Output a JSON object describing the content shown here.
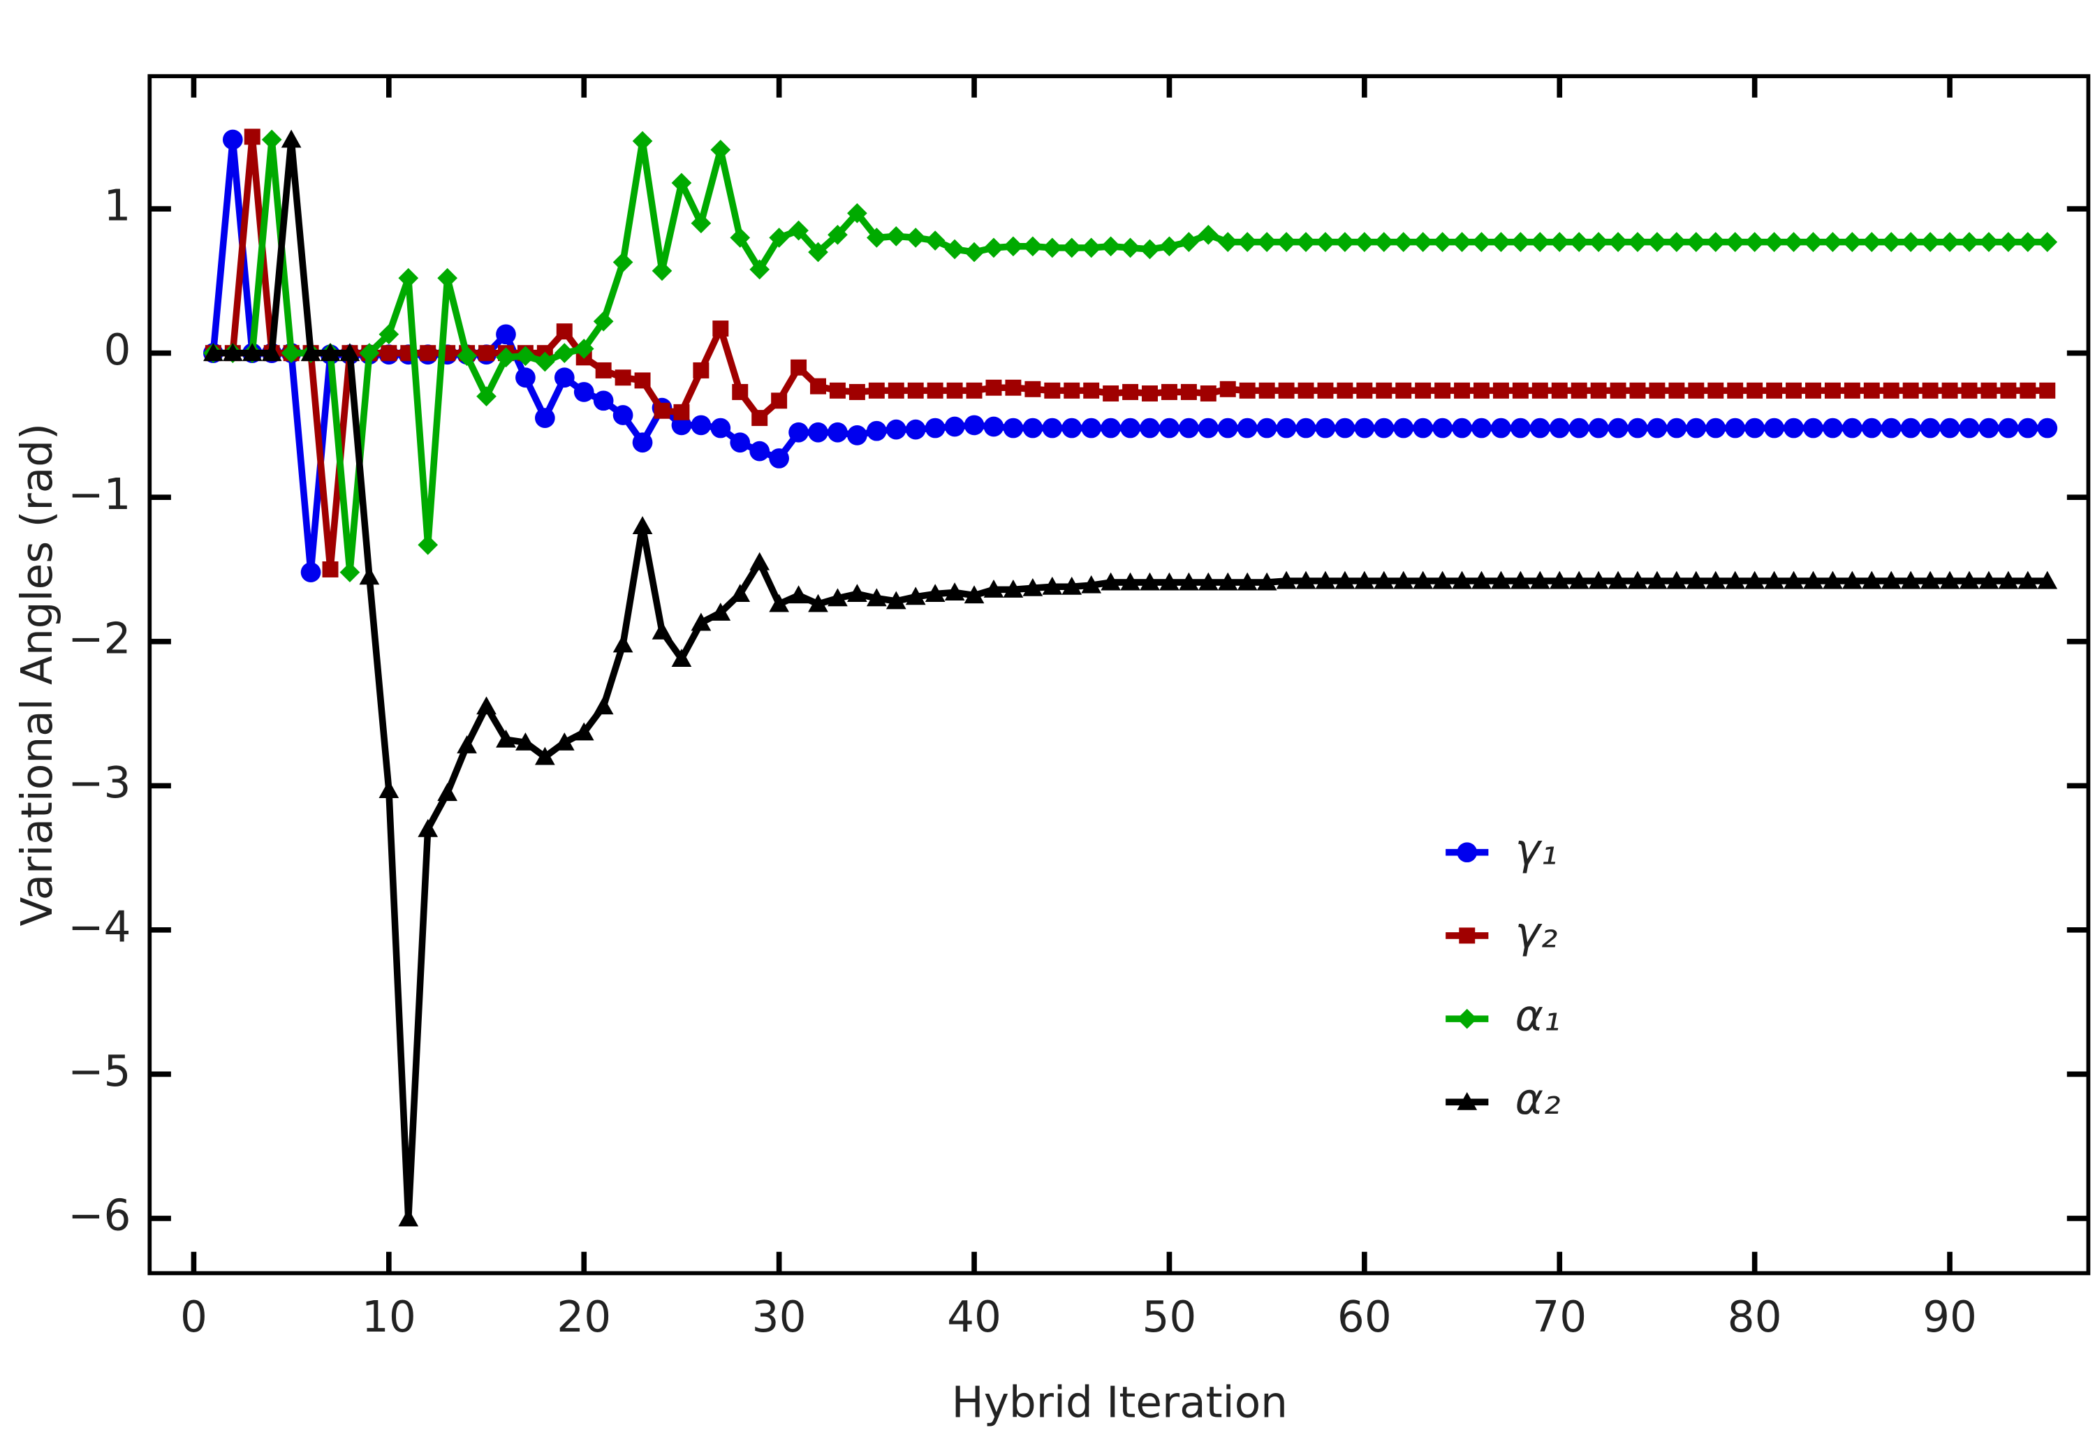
{
  "chart_data": {
    "type": "line",
    "xlabel": "Hybrid Iteration",
    "ylabel": "Variational Angles (rad)",
    "x": [
      1,
      2,
      3,
      4,
      5,
      6,
      7,
      8,
      9,
      10,
      11,
      12,
      13,
      14,
      15,
      16,
      17,
      18,
      19,
      20,
      21,
      22,
      23,
      24,
      25,
      26,
      27,
      28,
      29,
      30,
      31,
      32,
      33,
      34,
      35,
      36,
      37,
      38,
      39,
      40,
      41,
      42,
      43,
      44,
      45,
      46,
      47,
      48,
      49,
      50,
      51,
      52,
      53,
      54,
      55,
      56,
      57,
      58,
      59,
      60,
      61,
      62,
      63,
      64,
      65,
      66,
      67,
      68,
      69,
      70,
      71,
      72,
      73,
      74,
      75,
      76,
      77,
      78,
      79,
      80,
      81,
      82,
      83,
      84,
      85,
      86,
      87,
      88,
      89,
      90,
      91,
      92,
      93,
      94,
      95
    ],
    "series": [
      {
        "name": "γ₁",
        "color": "#0000ee",
        "marker": "circle",
        "values": [
          0,
          1.48,
          0,
          0,
          0,
          -1.52,
          -0.01,
          -0.01,
          -0.01,
          -0.01,
          -0.01,
          -0.01,
          -0.01,
          -0.01,
          -0.01,
          0.13,
          -0.17,
          -0.45,
          -0.17,
          -0.27,
          -0.33,
          -0.43,
          -0.62,
          -0.38,
          -0.5,
          -0.5,
          -0.52,
          -0.62,
          -0.68,
          -0.73,
          -0.55,
          -0.55,
          -0.55,
          -0.57,
          -0.54,
          -0.53,
          -0.53,
          -0.52,
          -0.51,
          -0.5,
          -0.51,
          -0.52,
          -0.52,
          -0.52,
          -0.52,
          -0.52,
          -0.52,
          -0.52,
          -0.52,
          -0.52,
          -0.52,
          -0.52,
          -0.52,
          -0.52,
          -0.52,
          -0.52,
          -0.52,
          -0.52,
          -0.52,
          -0.52,
          -0.52,
          -0.52,
          -0.52,
          -0.52,
          -0.52,
          -0.52,
          -0.52,
          -0.52,
          -0.52,
          -0.52,
          -0.52,
          -0.52,
          -0.52,
          -0.52,
          -0.52,
          -0.52,
          -0.52,
          -0.52,
          -0.52,
          -0.52,
          -0.52,
          -0.52,
          -0.52,
          -0.52,
          -0.52,
          -0.52,
          -0.52,
          -0.52,
          -0.52,
          -0.52,
          -0.52,
          -0.52,
          -0.52,
          -0.52,
          -0.52
        ]
      },
      {
        "name": "γ₂",
        "color": "#a00000",
        "marker": "square",
        "values": [
          0,
          0,
          1.5,
          0,
          0,
          0,
          -1.5,
          0,
          0,
          0,
          0,
          0,
          0,
          0,
          0,
          0,
          0,
          0,
          0.15,
          -0.03,
          -0.12,
          -0.17,
          -0.19,
          -0.4,
          -0.41,
          -0.12,
          0.17,
          -0.27,
          -0.45,
          -0.33,
          -0.1,
          -0.23,
          -0.26,
          -0.27,
          -0.26,
          -0.26,
          -0.26,
          -0.26,
          -0.26,
          -0.26,
          -0.24,
          -0.24,
          -0.25,
          -0.26,
          -0.26,
          -0.26,
          -0.28,
          -0.27,
          -0.28,
          -0.27,
          -0.27,
          -0.28,
          -0.25,
          -0.26,
          -0.26,
          -0.26,
          -0.26,
          -0.26,
          -0.26,
          -0.26,
          -0.26,
          -0.26,
          -0.26,
          -0.26,
          -0.26,
          -0.26,
          -0.26,
          -0.26,
          -0.26,
          -0.26,
          -0.26,
          -0.26,
          -0.26,
          -0.26,
          -0.26,
          -0.26,
          -0.26,
          -0.26,
          -0.26,
          -0.26,
          -0.26,
          -0.26,
          -0.26,
          -0.26,
          -0.26,
          -0.26,
          -0.26,
          -0.26,
          -0.26,
          -0.26,
          -0.26,
          -0.26,
          -0.26,
          -0.26,
          -0.26
        ]
      },
      {
        "name": "α₁",
        "color": "#00aa00",
        "marker": "diamond",
        "values": [
          0,
          0,
          0,
          1.48,
          0,
          0,
          0,
          -1.52,
          0,
          0.13,
          0.52,
          -1.33,
          0.52,
          -0.02,
          -0.3,
          -0.03,
          -0.02,
          -0.06,
          0,
          0.03,
          0.22,
          0.63,
          1.47,
          0.57,
          1.18,
          0.9,
          1.41,
          0.8,
          0.58,
          0.8,
          0.85,
          0.7,
          0.82,
          0.97,
          0.8,
          0.81,
          0.8,
          0.78,
          0.72,
          0.7,
          0.73,
          0.74,
          0.74,
          0.73,
          0.73,
          0.73,
          0.74,
          0.73,
          0.72,
          0.74,
          0.77,
          0.82,
          0.77,
          0.77,
          0.77,
          0.77,
          0.77,
          0.77,
          0.77,
          0.77,
          0.77,
          0.77,
          0.77,
          0.77,
          0.77,
          0.77,
          0.77,
          0.77,
          0.77,
          0.77,
          0.77,
          0.77,
          0.77,
          0.77,
          0.77,
          0.77,
          0.77,
          0.77,
          0.77,
          0.77,
          0.77,
          0.77,
          0.77,
          0.77,
          0.77,
          0.77,
          0.77,
          0.77,
          0.77,
          0.77,
          0.77,
          0.77,
          0.77,
          0.77,
          0.77
        ]
      },
      {
        "name": "α₂",
        "color": "#000000",
        "marker": "triangle",
        "values": [
          0,
          0,
          0,
          0,
          1.48,
          0,
          0,
          0,
          -1.55,
          -3.03,
          -6,
          -3.3,
          -3.05,
          -2.72,
          -2.45,
          -2.68,
          -2.7,
          -2.8,
          -2.7,
          -2.63,
          -2.45,
          -2.02,
          -1.2,
          -1.93,
          -2.12,
          -1.87,
          -1.8,
          -1.67,
          -1.45,
          -1.74,
          -1.68,
          -1.74,
          -1.7,
          -1.67,
          -1.7,
          -1.72,
          -1.69,
          -1.67,
          -1.66,
          -1.68,
          -1.64,
          -1.64,
          -1.63,
          -1.62,
          -1.62,
          -1.61,
          -1.59,
          -1.59,
          -1.59,
          -1.59,
          -1.59,
          -1.59,
          -1.59,
          -1.59,
          -1.59,
          -1.58,
          -1.58,
          -1.58,
          -1.58,
          -1.58,
          -1.58,
          -1.58,
          -1.58,
          -1.58,
          -1.58,
          -1.58,
          -1.58,
          -1.58,
          -1.58,
          -1.58,
          -1.58,
          -1.58,
          -1.58,
          -1.58,
          -1.58,
          -1.58,
          -1.58,
          -1.58,
          -1.58,
          -1.58,
          -1.58,
          -1.58,
          -1.58,
          -1.58,
          -1.58,
          -1.58,
          -1.58,
          -1.58,
          -1.58,
          -1.58,
          -1.58,
          -1.58,
          -1.58,
          -1.58,
          -1.58
        ]
      }
    ],
    "xlim": [
      -2.26,
      97.1
    ],
    "ylim": [
      -6.38,
      1.92
    ],
    "xticks": [
      0,
      10,
      20,
      30,
      40,
      50,
      60,
      70,
      80,
      90
    ],
    "yticks": [
      1,
      0,
      {
        "value": -1,
        "label": "−1"
      },
      {
        "value": -2,
        "label": "−2"
      },
      {
        "value": -3,
        "label": "−3"
      },
      {
        "value": -4,
        "label": "−4"
      },
      {
        "value": -5,
        "label": "−5"
      },
      {
        "value": -6,
        "label": "−6"
      }
    ],
    "grid": false,
    "legend": "center right"
  }
}
